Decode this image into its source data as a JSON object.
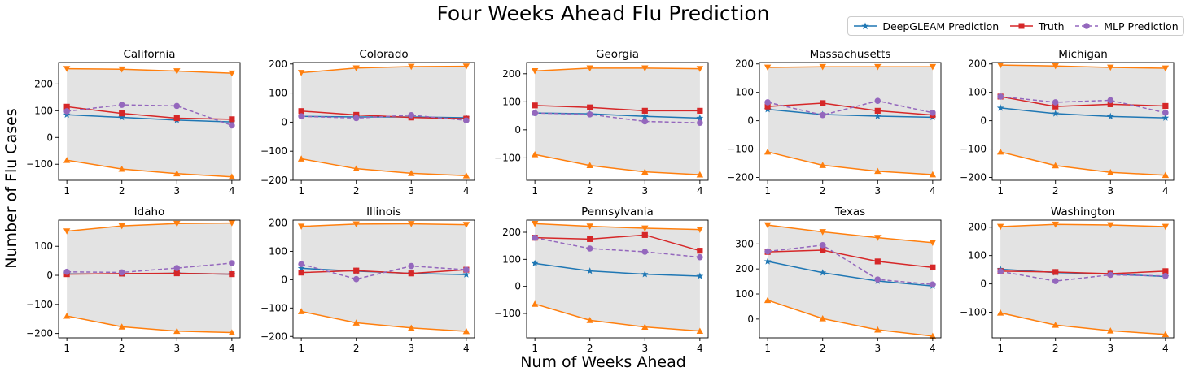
{
  "title": "Four Weeks Ahead Flu Prediction",
  "xlabel": "Num of Weeks Ahead",
  "ylabel": "Number of Flu Cases",
  "legend": {
    "placement": "top-right",
    "items": [
      {
        "label": "DeepGLEAM Prediction",
        "color": "#1f77b4",
        "marker": "star",
        "dash": false
      },
      {
        "label": "Truth",
        "color": "#d62728",
        "marker": "square",
        "dash": false
      },
      {
        "label": "MLP Prediction",
        "color": "#9467bd",
        "marker": "circle",
        "dash": true
      }
    ]
  },
  "colors": {
    "deepgleam": "#1f77b4",
    "truth": "#d62728",
    "mlp": "#9467bd",
    "bounds": "#ff7f0e",
    "band": "#e3e3e3"
  },
  "chart_data": [
    {
      "type": "line",
      "title": "California",
      "x": [
        1,
        2,
        3,
        4
      ],
      "ylim": [
        -160,
        280
      ],
      "yticks": [
        -100,
        0,
        100,
        200
      ],
      "series": [
        {
          "name": "DeepGLEAM Prediction",
          "values": [
            85,
            75,
            65,
            58
          ]
        },
        {
          "name": "Truth",
          "values": [
            115,
            90,
            72,
            68
          ]
        },
        {
          "name": "MLP Prediction",
          "values": [
            98,
            122,
            118,
            45
          ]
        }
      ],
      "upper": [
        257,
        255,
        248,
        240
      ],
      "lower": [
        -85,
        -118,
        -135,
        -147
      ]
    },
    {
      "type": "line",
      "title": "Colorado",
      "x": [
        1,
        2,
        3,
        4
      ],
      "ylim": [
        -200,
        205
      ],
      "yticks": [
        -200,
        -100,
        0,
        100,
        200
      ],
      "series": [
        {
          "name": "DeepGLEAM Prediction",
          "values": [
            20,
            18,
            18,
            15
          ]
        },
        {
          "name": "Truth",
          "values": [
            38,
            25,
            16,
            12
          ]
        },
        {
          "name": "MLP Prediction",
          "values": [
            20,
            14,
            24,
            6
          ]
        }
      ],
      "upper": [
        170,
        186,
        191,
        192
      ],
      "lower": [
        -126,
        -160,
        -176,
        -184
      ]
    },
    {
      "type": "line",
      "title": "Georgia",
      "x": [
        1,
        2,
        3,
        4
      ],
      "ylim": [
        -180,
        240
      ],
      "yticks": [
        -100,
        0,
        100,
        200
      ],
      "series": [
        {
          "name": "DeepGLEAM Prediction",
          "values": [
            60,
            57,
            48,
            42
          ]
        },
        {
          "name": "Truth",
          "values": [
            87,
            80,
            68,
            68
          ]
        },
        {
          "name": "MLP Prediction",
          "values": [
            60,
            55,
            30,
            25
          ]
        }
      ],
      "upper": [
        210,
        220,
        220,
        218
      ],
      "lower": [
        -88,
        -127,
        -150,
        -160
      ]
    },
    {
      "type": "line",
      "title": "Massachusetts",
      "x": [
        1,
        2,
        3,
        4
      ],
      "ylim": [
        -210,
        205
      ],
      "yticks": [
        -200,
        -100,
        0,
        100,
        200
      ],
      "series": [
        {
          "name": "DeepGLEAM Prediction",
          "values": [
            40,
            22,
            16,
            12
          ]
        },
        {
          "name": "Truth",
          "values": [
            50,
            62,
            35,
            20
          ]
        },
        {
          "name": "MLP Prediction",
          "values": [
            65,
            20,
            70,
            28
          ]
        }
      ],
      "upper": [
        188,
        190,
        190,
        190
      ],
      "lower": [
        -110,
        -157,
        -178,
        -190
      ]
    },
    {
      "type": "line",
      "title": "Michigan",
      "x": [
        1,
        2,
        3,
        4
      ],
      "ylim": [
        -210,
        205
      ],
      "yticks": [
        -200,
        -100,
        0,
        100,
        200
      ],
      "series": [
        {
          "name": "DeepGLEAM Prediction",
          "values": [
            45,
            25,
            15,
            10
          ]
        },
        {
          "name": "Truth",
          "values": [
            85,
            50,
            58,
            52
          ]
        },
        {
          "name": "MLP Prediction",
          "values": [
            85,
            65,
            72,
            28
          ]
        }
      ],
      "upper": [
        196,
        193,
        188,
        185
      ],
      "lower": [
        -110,
        -158,
        -182,
        -192
      ]
    },
    {
      "type": "line",
      "title": "Idaho",
      "x": [
        1,
        2,
        3,
        4
      ],
      "ylim": [
        -215,
        190
      ],
      "yticks": [
        -200,
        -100,
        0,
        100
      ],
      "series": [
        {
          "name": "DeepGLEAM Prediction",
          "values": [
            5,
            5,
            7,
            4
          ]
        },
        {
          "name": "Truth",
          "values": [
            4,
            6,
            7,
            4
          ]
        },
        {
          "name": "MLP Prediction",
          "values": [
            12,
            10,
            25,
            42
          ]
        }
      ],
      "upper": [
        152,
        170,
        178,
        180
      ],
      "lower": [
        -140,
        -177,
        -192,
        -197
      ]
    },
    {
      "type": "line",
      "title": "Illinois",
      "x": [
        1,
        2,
        3,
        4
      ],
      "ylim": [
        -205,
        210
      ],
      "yticks": [
        -200,
        -100,
        0,
        100,
        200
      ],
      "series": [
        {
          "name": "DeepGLEAM Prediction",
          "values": [
            40,
            30,
            22,
            18
          ]
        },
        {
          "name": "Truth",
          "values": [
            25,
            32,
            22,
            35
          ]
        },
        {
          "name": "MLP Prediction",
          "values": [
            55,
            2,
            48,
            35
          ]
        }
      ],
      "upper": [
        188,
        196,
        197,
        194
      ],
      "lower": [
        -112,
        -152,
        -170,
        -182
      ]
    },
    {
      "type": "line",
      "title": "Pennsylvania",
      "x": [
        1,
        2,
        3,
        4
      ],
      "ylim": [
        -190,
        245
      ],
      "yticks": [
        -100,
        0,
        100,
        200
      ],
      "series": [
        {
          "name": "DeepGLEAM Prediction",
          "values": [
            85,
            57,
            45,
            38
          ]
        },
        {
          "name": "Truth",
          "values": [
            180,
            175,
            190,
            132
          ]
        },
        {
          "name": "MLP Prediction",
          "values": [
            180,
            140,
            128,
            108
          ]
        }
      ],
      "upper": [
        232,
        222,
        215,
        210
      ],
      "lower": [
        -65,
        -125,
        -150,
        -165
      ]
    },
    {
      "type": "line",
      "title": "Texas",
      "x": [
        1,
        2,
        3,
        4
      ],
      "ylim": [
        -75,
        395
      ],
      "yticks": [
        0,
        100,
        200,
        300
      ],
      "series": [
        {
          "name": "DeepGLEAM Prediction",
          "values": [
            230,
            185,
            152,
            132
          ]
        },
        {
          "name": "Truth",
          "values": [
            268,
            275,
            230,
            206
          ]
        },
        {
          "name": "MLP Prediction",
          "values": [
            270,
            295,
            158,
            138
          ]
        }
      ],
      "upper": [
        375,
        348,
        325,
        305
      ],
      "lower": [
        75,
        2,
        -43,
        -68
      ]
    },
    {
      "type": "line",
      "title": "Washington",
      "x": [
        1,
        2,
        3,
        4
      ],
      "ylim": [
        -190,
        225
      ],
      "yticks": [
        -100,
        0,
        100,
        200
      ],
      "series": [
        {
          "name": "DeepGLEAM Prediction",
          "values": [
            52,
            40,
            35,
            26
          ]
        },
        {
          "name": "Truth",
          "values": [
            45,
            42,
            36,
            45
          ]
        },
        {
          "name": "MLP Prediction",
          "values": [
            44,
            10,
            32,
            28
          ]
        }
      ],
      "upper": [
        202,
        210,
        208,
        202
      ],
      "lower": [
        -102,
        -145,
        -165,
        -178
      ]
    }
  ]
}
